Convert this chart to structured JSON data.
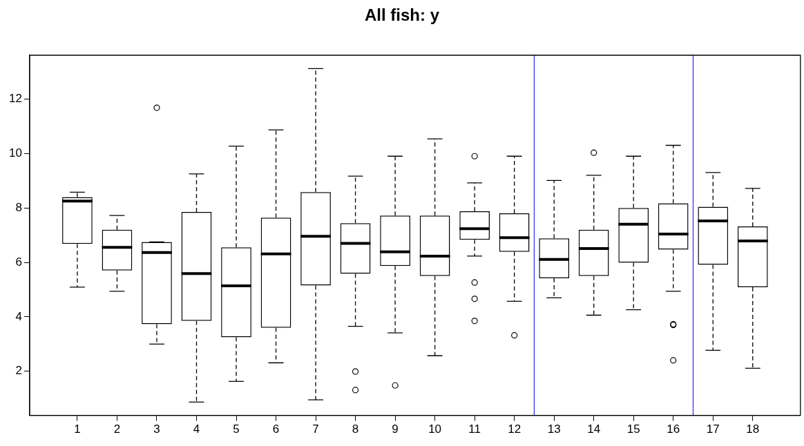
{
  "chart_data": {
    "type": "box",
    "title": "All fish: y",
    "x": [
      1,
      2,
      3,
      4,
      5,
      6,
      7,
      8,
      9,
      10,
      11,
      12,
      13,
      14,
      15,
      16,
      17,
      18
    ],
    "xlim": [
      -0.2,
      19.2
    ],
    "xticks": [
      1,
      2,
      3,
      4,
      5,
      6,
      7,
      8,
      9,
      10,
      11,
      12,
      13,
      14,
      15,
      16,
      17,
      18
    ],
    "boxes": [
      {
        "low": 5.09,
        "q1": 6.68,
        "median": 8.25,
        "q3": 8.4,
        "high": 8.58
      },
      {
        "low": 4.94,
        "q1": 5.7,
        "median": 6.55,
        "q3": 7.2,
        "high": 7.72
      },
      {
        "low": 3.0,
        "q1": 3.73,
        "median": 6.36,
        "q3": 6.75,
        "high": 6.75,
        "outliers": [
          11.68
        ]
      },
      {
        "low": 0.87,
        "q1": 3.85,
        "median": 5.59,
        "q3": 7.85,
        "high": 9.25
      },
      {
        "low": 1.63,
        "q1": 3.25,
        "median": 5.14,
        "q3": 6.55,
        "high": 10.27
      },
      {
        "low": 2.31,
        "q1": 3.6,
        "median": 6.31,
        "q3": 7.64,
        "high": 10.87
      },
      {
        "low": 0.95,
        "q1": 5.15,
        "median": 6.96,
        "q3": 8.58,
        "high": 13.12
      },
      {
        "low": 3.65,
        "q1": 5.58,
        "median": 6.7,
        "q3": 7.44,
        "high": 9.17,
        "outliers": [
          1.99,
          1.31
        ]
      },
      {
        "low": 3.41,
        "q1": 5.87,
        "median": 6.39,
        "q3": 7.72,
        "high": 9.9,
        "outliers": [
          1.48
        ]
      },
      {
        "low": 2.57,
        "q1": 5.5,
        "median": 6.23,
        "q3": 7.72,
        "high": 10.54
      },
      {
        "low": 6.23,
        "q1": 6.83,
        "median": 7.24,
        "q3": 7.88,
        "high": 8.92,
        "outliers": [
          9.9,
          5.26,
          4.66,
          3.85
        ]
      },
      {
        "low": 4.57,
        "q1": 6.39,
        "median": 6.91,
        "q3": 7.8,
        "high": 9.9,
        "outliers": [
          3.32
        ]
      },
      {
        "low": 4.7,
        "q1": 5.42,
        "median": 6.11,
        "q3": 6.88,
        "high": 9.01
      },
      {
        "low": 4.06,
        "q1": 5.5,
        "median": 6.51,
        "q3": 7.2,
        "high": 9.2,
        "outliers": [
          10.03
        ]
      },
      {
        "low": 4.26,
        "q1": 5.99,
        "median": 7.4,
        "q3": 8.0,
        "high": 9.9
      },
      {
        "low": 4.94,
        "q1": 6.47,
        "median": 7.04,
        "q3": 8.17,
        "high": 10.3,
        "outliers": [
          3.7,
          3.73,
          2.4
        ]
      },
      {
        "low": 2.77,
        "q1": 5.91,
        "median": 7.52,
        "q3": 8.04,
        "high": 9.3
      },
      {
        "low": 2.11,
        "q1": 5.09,
        "median": 6.79,
        "q3": 7.32,
        "high": 8.72
      }
    ],
    "ylim": [
      0.38,
      13.61
    ],
    "yticks": [
      2,
      4,
      6,
      8,
      10,
      12
    ],
    "grid": false,
    "legend": false,
    "ref_lines": [
      {
        "axis": "x",
        "value": 12.5,
        "color": "#3333ff"
      },
      {
        "axis": "x",
        "value": 16.5,
        "color": "#3333ff"
      }
    ]
  }
}
